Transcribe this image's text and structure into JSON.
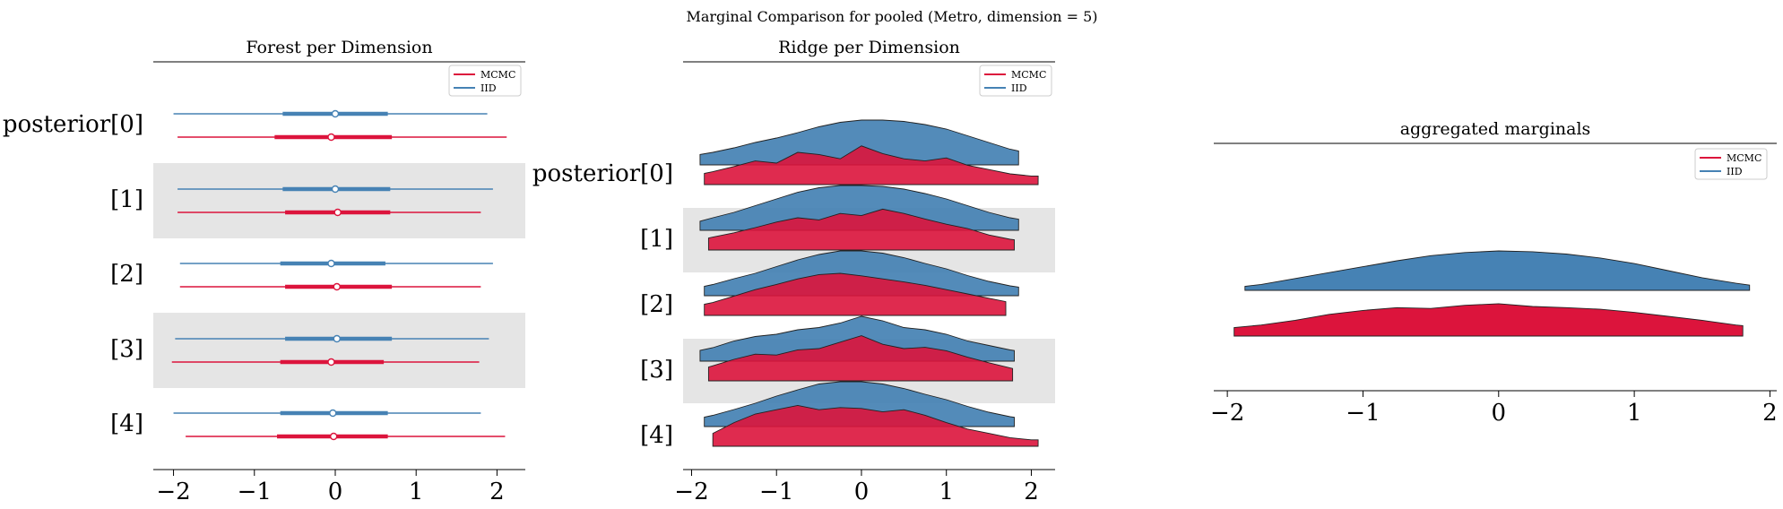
{
  "figure_title": "Marginal Comparison for pooled (Metro, dimension = 5)",
  "colors": {
    "mcmc": "#dc143c",
    "iid": "#4682b4",
    "band": "#e5e5e5"
  },
  "chart_data": [
    {
      "type": "forest",
      "title": "Forest per Dimension",
      "legend": {
        "position": "top-right",
        "entries": [
          "MCMC",
          "IID"
        ]
      },
      "xlim": [
        -2.25,
        2.35
      ],
      "xticks": [
        -2,
        -1,
        0,
        1,
        2
      ],
      "xticklabels": [
        "−2",
        "−1",
        "0",
        "1",
        "2"
      ],
      "rows": [
        {
          "label": "posterior[0]",
          "iid": {
            "min": -2.0,
            "q25": -0.65,
            "median": 0.0,
            "q75": 0.65,
            "max": 1.88
          },
          "mcmc": {
            "min": -1.95,
            "q25": -0.75,
            "median": -0.05,
            "q75": 0.7,
            "max": 2.12
          }
        },
        {
          "label": "[1]",
          "iid": {
            "min": -1.95,
            "q25": -0.65,
            "median": 0.0,
            "q75": 0.68,
            "max": 1.95
          },
          "mcmc": {
            "min": -1.95,
            "q25": -0.62,
            "median": 0.03,
            "q75": 0.68,
            "max": 1.8
          }
        },
        {
          "label": "[2]",
          "iid": {
            "min": -1.92,
            "q25": -0.68,
            "median": -0.05,
            "q75": 0.62,
            "max": 1.95
          },
          "mcmc": {
            "min": -1.92,
            "q25": -0.62,
            "median": 0.02,
            "q75": 0.7,
            "max": 1.8
          }
        },
        {
          "label": "[3]",
          "iid": {
            "min": -1.98,
            "q25": -0.62,
            "median": 0.02,
            "q75": 0.7,
            "max": 1.9
          },
          "mcmc": {
            "min": -2.02,
            "q25": -0.68,
            "median": -0.05,
            "q75": 0.6,
            "max": 1.78
          }
        },
        {
          "label": "[4]",
          "iid": {
            "min": -2.0,
            "q25": -0.68,
            "median": -0.03,
            "q75": 0.65,
            "max": 1.8
          },
          "mcmc": {
            "min": -1.85,
            "q25": -0.72,
            "median": -0.02,
            "q75": 0.65,
            "max": 2.1
          }
        }
      ]
    },
    {
      "type": "ridge",
      "title": "Ridge per Dimension",
      "legend": {
        "position": "top-right",
        "entries": [
          "MCMC",
          "IID"
        ]
      },
      "xlim": [
        -2.1,
        2.28
      ],
      "xticks": [
        -2,
        -1,
        0,
        1,
        2
      ],
      "xticklabels": [
        "−2",
        "−1",
        "0",
        "1",
        "2"
      ],
      "density_x": [
        -2.0,
        -1.75,
        -1.5,
        -1.25,
        -1.0,
        -0.75,
        -0.5,
        -0.25,
        0.0,
        0.25,
        0.5,
        0.75,
        1.0,
        1.25,
        1.5,
        1.75,
        2.0
      ],
      "rows": [
        {
          "label": "posterior[0]",
          "iid": {
            "range": [
              -1.9,
              1.85
            ],
            "density": [
              0.2,
              0.28,
              0.38,
              0.5,
              0.6,
              0.72,
              0.85,
              0.95,
              1.0,
              1.0,
              0.97,
              0.9,
              0.8,
              0.65,
              0.5,
              0.35,
              0.25
            ]
          },
          "mcmc": {
            "range": [
              -1.85,
              2.08
            ],
            "density": [
              0.2,
              0.3,
              0.42,
              0.55,
              0.5,
              0.75,
              0.7,
              0.6,
              0.9,
              0.72,
              0.6,
              0.55,
              0.62,
              0.45,
              0.35,
              0.25,
              0.2
            ]
          }
        },
        {
          "label": "[1]",
          "iid": {
            "range": [
              -1.9,
              1.85
            ],
            "density": [
              0.15,
              0.28,
              0.4,
              0.55,
              0.7,
              0.85,
              0.95,
              1.0,
              1.0,
              0.98,
              0.92,
              0.82,
              0.7,
              0.55,
              0.4,
              0.28,
              0.2
            ]
          },
          "mcmc": {
            "range": [
              -1.8,
              1.8
            ],
            "density": [
              0.2,
              0.3,
              0.4,
              0.52,
              0.65,
              0.75,
              0.7,
              0.85,
              0.8,
              0.95,
              0.85,
              0.72,
              0.6,
              0.5,
              0.35,
              0.25,
              0.2
            ]
          }
        },
        {
          "label": "[2]",
          "iid": {
            "range": [
              -1.85,
              1.85
            ],
            "density": [
              0.15,
              0.25,
              0.38,
              0.5,
              0.65,
              0.8,
              0.92,
              1.0,
              1.0,
              0.95,
              0.85,
              0.72,
              0.6,
              0.45,
              0.32,
              0.22,
              0.15
            ]
          },
          "mcmc": {
            "range": [
              -1.85,
              1.7
            ],
            "density": [
              0.2,
              0.3,
              0.45,
              0.6,
              0.72,
              0.85,
              0.95,
              0.98,
              0.92,
              0.85,
              0.78,
              0.7,
              0.6,
              0.5,
              0.4,
              0.3,
              0.2
            ]
          }
        },
        {
          "label": "[3]",
          "iid": {
            "range": [
              -1.9,
              1.8
            ],
            "density": [
              0.2,
              0.3,
              0.45,
              0.55,
              0.6,
              0.7,
              0.75,
              0.85,
              1.0,
              0.9,
              0.75,
              0.7,
              0.6,
              0.45,
              0.35,
              0.25,
              0.18
            ]
          },
          "mcmc": {
            "range": [
              -1.8,
              1.78
            ],
            "density": [
              0.2,
              0.35,
              0.5,
              0.62,
              0.6,
              0.72,
              0.75,
              0.9,
              1.05,
              0.85,
              0.75,
              0.78,
              0.7,
              0.55,
              0.42,
              0.3,
              0.2
            ]
          }
        },
        {
          "label": "[4]",
          "iid": {
            "range": [
              -1.85,
              1.8
            ],
            "density": [
              0.15,
              0.25,
              0.38,
              0.52,
              0.68,
              0.82,
              0.95,
              1.0,
              1.0,
              0.95,
              0.85,
              0.72,
              0.6,
              0.45,
              0.32,
              0.22,
              0.15
            ]
          },
          "mcmc": {
            "range": [
              -1.75,
              2.08
            ],
            "density": [
              0.15,
              0.3,
              0.55,
              0.75,
              0.85,
              0.95,
              0.85,
              0.9,
              0.88,
              0.8,
              0.85,
              0.72,
              0.55,
              0.4,
              0.3,
              0.2,
              0.15
            ]
          }
        }
      ]
    },
    {
      "type": "ridge",
      "title": "aggregated marginals",
      "legend": {
        "position": "top-right",
        "entries": [
          "MCMC",
          "IID"
        ]
      },
      "xlim": [
        -2.1,
        2.05
      ],
      "xticks": [
        -2,
        -1,
        0,
        1,
        2
      ],
      "xticklabels": [
        "−2",
        "−1",
        "0",
        "1",
        "2"
      ],
      "density_x": [
        -2.0,
        -1.75,
        -1.5,
        -1.25,
        -1.0,
        -0.75,
        -0.5,
        -0.25,
        0.0,
        0.25,
        0.5,
        0.75,
        1.0,
        1.25,
        1.5,
        1.75,
        2.0
      ],
      "iid": {
        "range": [
          -1.87,
          1.85
        ],
        "density": [
          0.05,
          0.15,
          0.3,
          0.45,
          0.6,
          0.75,
          0.88,
          0.96,
          1.0,
          0.98,
          0.92,
          0.82,
          0.68,
          0.5,
          0.32,
          0.18,
          0.06
        ]
      },
      "mcmc": {
        "range": [
          -1.95,
          1.8
        ],
        "density": [
          0.2,
          0.28,
          0.4,
          0.55,
          0.65,
          0.72,
          0.7,
          0.78,
          0.82,
          0.75,
          0.72,
          0.68,
          0.6,
          0.5,
          0.4,
          0.28,
          0.2
        ]
      }
    }
  ]
}
